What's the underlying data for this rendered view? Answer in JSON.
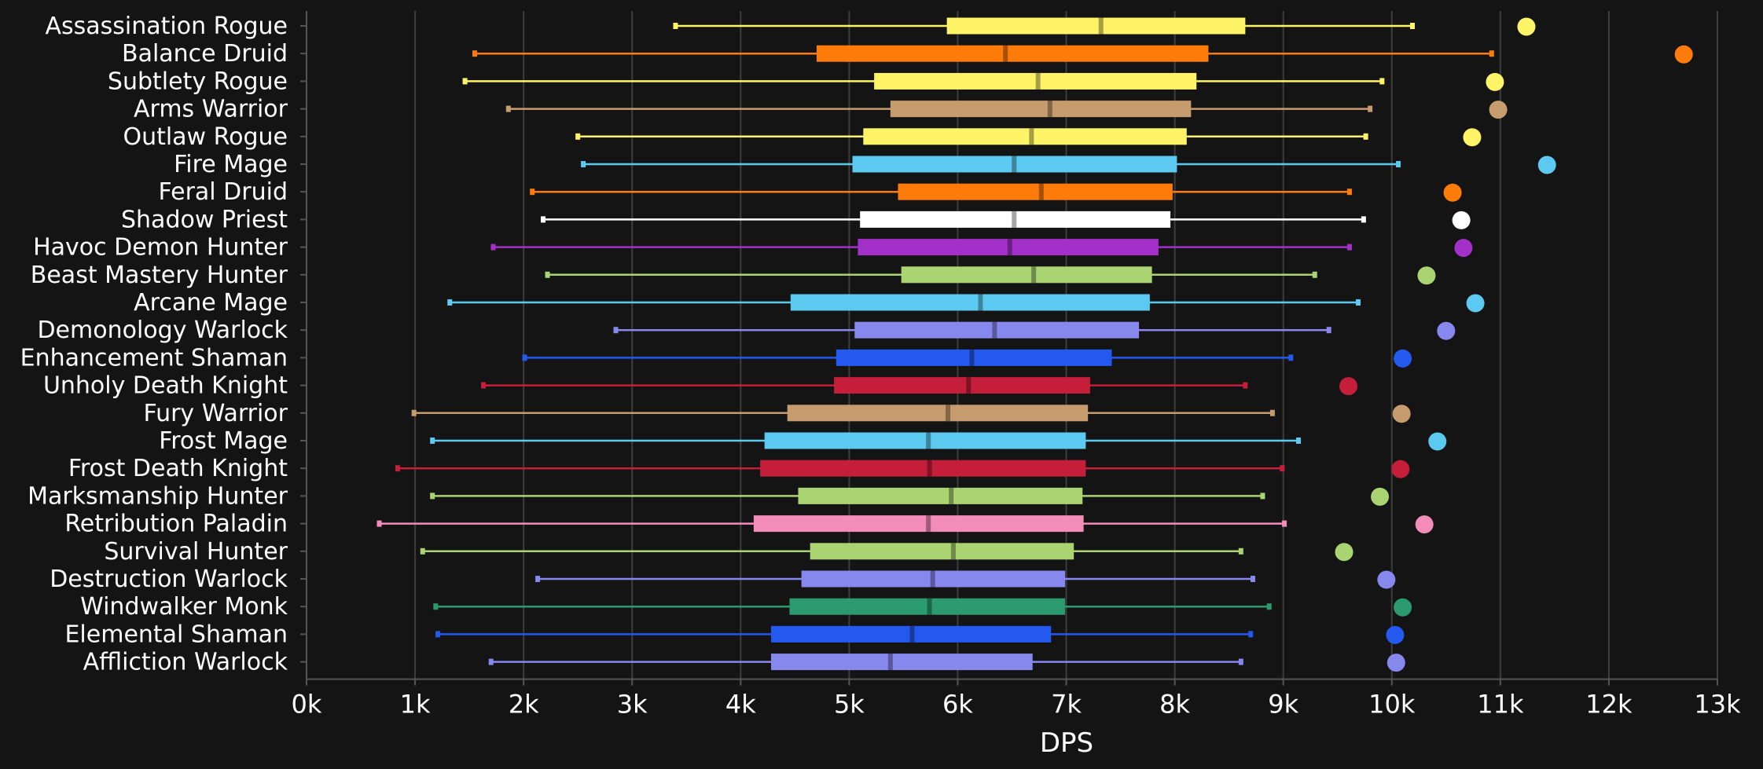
{
  "chart_data": {
    "type": "box",
    "orientation": "horizontal",
    "xlabel": "DPS",
    "xlim": [
      0,
      13000
    ],
    "x_ticks": [
      0,
      1000,
      2000,
      3000,
      4000,
      5000,
      6000,
      7000,
      8000,
      9000,
      10000,
      11000,
      12000,
      13000
    ],
    "x_tick_labels": [
      "0k",
      "1k",
      "2k",
      "3k",
      "4k",
      "5k",
      "6k",
      "7k",
      "8k",
      "9k",
      "10k",
      "11k",
      "12k",
      "13k"
    ],
    "grid": true,
    "background": "#141414",
    "series": [
      {
        "name": "Assassination Rogue",
        "color": "#fff468",
        "min": 3400,
        "q1": 5900,
        "median": 7320,
        "q3": 8650,
        "max": 10190,
        "top": 11240
      },
      {
        "name": "Balance Druid",
        "color": "#ff7c0a",
        "min": 1550,
        "q1": 4700,
        "median": 6440,
        "q3": 8310,
        "max": 10920,
        "top": 12690
      },
      {
        "name": "Subtlety Rogue",
        "color": "#fff468",
        "min": 1460,
        "q1": 5230,
        "median": 6740,
        "q3": 8200,
        "max": 9910,
        "top": 10950
      },
      {
        "name": "Arms Warrior",
        "color": "#c69b6d",
        "min": 1860,
        "q1": 5380,
        "median": 6850,
        "q3": 8150,
        "max": 9800,
        "top": 10980
      },
      {
        "name": "Outlaw Rogue",
        "color": "#fff468",
        "min": 2500,
        "q1": 5130,
        "median": 6680,
        "q3": 8110,
        "max": 9760,
        "top": 10740
      },
      {
        "name": "Fire Mage",
        "color": "#3fc7eb",
        "min": 2550,
        "q1": 5030,
        "median": 6520,
        "q3": 8020,
        "max": 10060,
        "top": 11430
      },
      {
        "name": "Feral Druid",
        "color": "#ff7c0a",
        "min": 2080,
        "q1": 5450,
        "median": 6770,
        "q3": 7980,
        "max": 9610,
        "top": 10560
      },
      {
        "name": "Shadow Priest",
        "color": "#ffffff",
        "min": 2180,
        "q1": 5100,
        "median": 6520,
        "q3": 7960,
        "max": 9740,
        "top": 10640
      },
      {
        "name": "Havoc Demon Hunter",
        "color": "#a330c9",
        "min": 1720,
        "q1": 5080,
        "median": 6480,
        "q3": 7850,
        "max": 9610,
        "top": 10660
      },
      {
        "name": "Beast Mastery Hunter",
        "color": "#aad372",
        "min": 2220,
        "q1": 5480,
        "median": 6700,
        "q3": 7790,
        "max": 9290,
        "top": 10320
      },
      {
        "name": "Arcane Mage",
        "color": "#3fc7eb",
        "min": 1320,
        "q1": 4460,
        "median": 6210,
        "q3": 7770,
        "max": 9690,
        "top": 10770
      },
      {
        "name": "Demonology Warlock",
        "color": "#8788ee",
        "min": 2850,
        "q1": 5050,
        "median": 6340,
        "q3": 7670,
        "max": 9420,
        "top": 10500
      },
      {
        "name": "Enhancement Shaman",
        "color": "#0070dd",
        "min": 2010,
        "q1": 4880,
        "median": 6130,
        "q3": 7420,
        "max": 9070,
        "top": 10100
      },
      {
        "name": "Unholy Death Knight",
        "color": "#c41e3a",
        "min": 1630,
        "q1": 4860,
        "median": 6100,
        "q3": 7220,
        "max": 8650,
        "top": 9600
      },
      {
        "name": "Fury Warrior",
        "color": "#c69b6d",
        "min": 990,
        "q1": 4430,
        "median": 5910,
        "q3": 7200,
        "max": 8900,
        "top": 10090
      },
      {
        "name": "Frost Mage",
        "color": "#3fc7eb",
        "min": 1160,
        "q1": 4220,
        "median": 5730,
        "q3": 7180,
        "max": 9140,
        "top": 10420
      },
      {
        "name": "Frost Death Knight",
        "color": "#c41e3a",
        "min": 840,
        "q1": 4180,
        "median": 5740,
        "q3": 7180,
        "max": 8990,
        "top": 10080
      },
      {
        "name": "Marksmanship Hunter",
        "color": "#aad372",
        "min": 1160,
        "q1": 4530,
        "median": 5940,
        "q3": 7150,
        "max": 8810,
        "top": 9890
      },
      {
        "name": "Retribution Paladin",
        "color": "#f48cba",
        "min": 670,
        "q1": 4120,
        "median": 5730,
        "q3": 7160,
        "max": 9010,
        "top": 10300
      },
      {
        "name": "Survival Hunter",
        "color": "#aad372",
        "min": 1070,
        "q1": 4640,
        "median": 5960,
        "q3": 7070,
        "max": 8610,
        "top": 9560
      },
      {
        "name": "Destruction Warlock",
        "color": "#8788ee",
        "min": 2130,
        "q1": 4560,
        "median": 5770,
        "q3": 6990,
        "max": 8720,
        "top": 9950
      },
      {
        "name": "Windwalker Monk",
        "color": "#00ff98",
        "min": 1190,
        "q1": 4450,
        "median": 5740,
        "q3": 6990,
        "max": 8870,
        "top": 10100
      },
      {
        "name": "Elemental Shaman",
        "color": "#0070dd",
        "min": 1210,
        "q1": 4280,
        "median": 5580,
        "q3": 6860,
        "max": 8700,
        "top": 10030
      },
      {
        "name": "Affliction Warlock",
        "color": "#8788ee",
        "min": 1700,
        "q1": 4280,
        "median": 5380,
        "q3": 6690,
        "max": 8610,
        "top": 10040
      }
    ]
  }
}
